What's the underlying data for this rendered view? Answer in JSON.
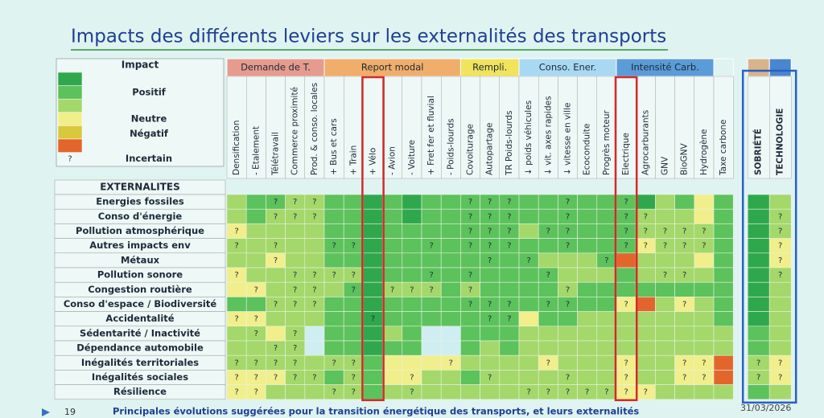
{
  "title": "Impacts des différents leviers sur les externalités des transports",
  "legend": {
    "title": "Impact",
    "colors": [
      "#2fa84d",
      "#5cc25c",
      "#a4d86a",
      "#f1ef8c",
      "#d7c93c",
      "#e2662c"
    ],
    "labels": [
      "Positif",
      "Neutre",
      "Négatif"
    ],
    "uncertain": {
      "symbol": "?",
      "label": "Incertain"
    }
  },
  "table": {
    "row_header": "EXTERNALITES",
    "groups": [
      {
        "label": "Demande de T.",
        "color": "#e79b8e",
        "levers": [
          "Densification",
          "- Etalement",
          "Télétravail",
          "Commerce proximité",
          "Prod. & conso. locales"
        ]
      },
      {
        "label": "Report modal",
        "color": "#f0ae6a",
        "levers": [
          "+ Bus et cars",
          "+ Train",
          "+ Vélo",
          "- Avion",
          "- Voiture",
          "+ Fret fer et fluvial",
          "- Poids-lourds"
        ]
      },
      {
        "label": "Rempli.",
        "color": "#f1e35c",
        "levers": [
          "Covoiturage",
          "Autopartage",
          "TR Poids-lourds"
        ]
      },
      {
        "label": "Conso. Ener.",
        "color": "#a9d9f2",
        "levers": [
          "↓ poids véhicules",
          "↓ vit. axes rapides",
          "↓ vitesse en ville",
          "Ecoconduite",
          "Progrès moteur"
        ]
      },
      {
        "label": "Intensité Carb.",
        "color": "#5b9bd8",
        "levers": [
          "Electrique",
          "Agrocarburants",
          "GNV",
          "BioGNV",
          "Hydrogène"
        ]
      },
      {
        "label": null,
        "color": "#dff3f1",
        "levers": [
          "Taxe carbone"
        ]
      },
      {
        "label": null,
        "color": "#d8b48a",
        "levers": [
          "SOBRIÉTÉ"
        ]
      },
      {
        "label": null,
        "color": "#4a86d0",
        "levers": [
          "TECHNOLOGIE"
        ]
      }
    ],
    "rows": [
      {
        "label": "Energies fossiles",
        "levels": [
          2,
          1,
          1,
          2,
          2,
          1,
          1,
          0,
          1,
          0,
          1,
          1,
          1,
          1,
          1,
          1,
          1,
          1,
          1,
          1,
          1,
          0,
          2,
          1,
          3,
          1,
          0,
          2
        ],
        "marks": [
          null,
          null,
          "?",
          "?",
          "?",
          null,
          null,
          null,
          null,
          null,
          null,
          null,
          "?",
          "?",
          "?",
          null,
          null,
          "?",
          null,
          null,
          "?",
          null,
          null,
          null,
          null,
          null,
          null,
          null
        ]
      },
      {
        "label": "Conso d'énergie",
        "levels": [
          2,
          1,
          2,
          2,
          2,
          1,
          1,
          0,
          1,
          0,
          1,
          1,
          1,
          1,
          1,
          1,
          1,
          1,
          1,
          1,
          1,
          2,
          2,
          2,
          3,
          1,
          0,
          2
        ],
        "marks": [
          null,
          null,
          "?",
          "?",
          "?",
          null,
          null,
          null,
          null,
          null,
          null,
          null,
          "?",
          "?",
          "?",
          null,
          null,
          "?",
          null,
          null,
          "?",
          "?",
          null,
          null,
          null,
          null,
          null,
          "?"
        ]
      },
      {
        "label": "Pollution atmosphérique",
        "levels": [
          3,
          2,
          2,
          2,
          2,
          1,
          1,
          0,
          1,
          1,
          1,
          1,
          1,
          1,
          1,
          2,
          1,
          1,
          1,
          1,
          1,
          2,
          2,
          2,
          2,
          1,
          0,
          2
        ],
        "marks": [
          "?",
          null,
          null,
          null,
          null,
          null,
          null,
          null,
          null,
          null,
          null,
          null,
          "?",
          "?",
          "?",
          null,
          "?",
          "?",
          null,
          null,
          "?",
          "?",
          "?",
          "?",
          "?",
          null,
          null,
          "?"
        ]
      },
      {
        "label": "Autres impacts env",
        "levels": [
          2,
          2,
          2,
          2,
          2,
          1,
          1,
          0,
          1,
          1,
          1,
          1,
          1,
          1,
          1,
          1,
          1,
          1,
          1,
          1,
          1,
          3,
          2,
          2,
          2,
          1,
          0,
          3
        ],
        "marks": [
          "?",
          null,
          "?",
          null,
          null,
          "?",
          "?",
          null,
          null,
          null,
          "?",
          null,
          "?",
          "?",
          "?",
          null,
          null,
          "?",
          null,
          null,
          "?",
          "?",
          "?",
          "?",
          "?",
          null,
          null,
          "?"
        ]
      },
      {
        "label": "Métaux",
        "levels": [
          2,
          2,
          3,
          2,
          2,
          1,
          1,
          0,
          1,
          1,
          1,
          1,
          1,
          1,
          1,
          1,
          2,
          2,
          2,
          1,
          5,
          2,
          2,
          2,
          3,
          1,
          0,
          3
        ],
        "marks": [
          null,
          null,
          "?",
          null,
          null,
          null,
          null,
          null,
          null,
          null,
          null,
          null,
          null,
          "?",
          null,
          "?",
          null,
          null,
          null,
          "?",
          null,
          null,
          null,
          null,
          null,
          null,
          null,
          "?"
        ]
      },
      {
        "label": "Pollution sonore",
        "levels": [
          3,
          2,
          2,
          2,
          2,
          2,
          2,
          0,
          1,
          1,
          1,
          1,
          1,
          1,
          1,
          1,
          1,
          2,
          2,
          2,
          1,
          2,
          2,
          2,
          2,
          1,
          0,
          2
        ],
        "marks": [
          "?",
          null,
          null,
          "?",
          "?",
          "?",
          "?",
          null,
          null,
          null,
          "?",
          null,
          "?",
          null,
          null,
          null,
          "?",
          null,
          null,
          null,
          null,
          null,
          "?",
          "?",
          null,
          null,
          null,
          "?"
        ]
      },
      {
        "label": "Congestion routière",
        "levels": [
          3,
          3,
          2,
          2,
          2,
          2,
          1,
          0,
          2,
          2,
          2,
          1,
          2,
          1,
          1,
          1,
          1,
          2,
          1,
          1,
          1,
          1,
          1,
          1,
          1,
          1,
          0,
          2
        ],
        "marks": [
          null,
          "?",
          null,
          "?",
          "?",
          null,
          "?",
          null,
          "?",
          "?",
          "?",
          null,
          "?",
          null,
          null,
          null,
          null,
          "?",
          null,
          null,
          null,
          null,
          null,
          null,
          null,
          null,
          null,
          null
        ]
      },
      {
        "label": "Conso d'espace / Biodiversité",
        "levels": [
          1,
          1,
          2,
          2,
          2,
          1,
          1,
          0,
          1,
          1,
          1,
          1,
          1,
          1,
          1,
          1,
          1,
          1,
          1,
          1,
          3,
          5,
          2,
          3,
          2,
          1,
          0,
          2
        ],
        "marks": [
          null,
          null,
          "?",
          "?",
          "?",
          null,
          null,
          null,
          null,
          null,
          null,
          null,
          "?",
          "?",
          "?",
          null,
          "?",
          "?",
          null,
          null,
          "?",
          null,
          null,
          "?",
          null,
          null,
          null,
          null
        ]
      },
      {
        "label": "Accidentalité",
        "levels": [
          3,
          3,
          2,
          2,
          2,
          1,
          1,
          0,
          1,
          1,
          1,
          1,
          1,
          1,
          1,
          3,
          1,
          1,
          2,
          2,
          2,
          2,
          2,
          2,
          2,
          1,
          0,
          2
        ],
        "marks": [
          "?",
          "?",
          null,
          null,
          null,
          null,
          null,
          "?",
          null,
          null,
          null,
          null,
          null,
          "?",
          "?",
          null,
          null,
          null,
          null,
          null,
          null,
          null,
          null,
          null,
          null,
          null,
          null,
          null
        ]
      },
      {
        "label": "Sédentarité / Inactivité",
        "levels": [
          2,
          2,
          3,
          2,
          null,
          1,
          1,
          0,
          2,
          1,
          null,
          null,
          1,
          1,
          1,
          2,
          2,
          2,
          2,
          2,
          2,
          2,
          2,
          2,
          2,
          2,
          1,
          2
        ],
        "marks": [
          null,
          "?",
          null,
          "?",
          null,
          null,
          null,
          null,
          null,
          null,
          null,
          null,
          null,
          null,
          null,
          null,
          null,
          null,
          null,
          null,
          null,
          null,
          null,
          null,
          null,
          null,
          null,
          null
        ]
      },
      {
        "label": "Dépendance automobile",
        "levels": [
          2,
          2,
          2,
          2,
          null,
          1,
          1,
          0,
          1,
          1,
          null,
          null,
          1,
          2,
          1,
          2,
          2,
          2,
          2,
          2,
          2,
          2,
          2,
          2,
          2,
          2,
          1,
          2
        ],
        "marks": [
          null,
          null,
          "?",
          "?",
          null,
          null,
          null,
          null,
          null,
          null,
          null,
          null,
          null,
          null,
          null,
          null,
          null,
          null,
          null,
          null,
          null,
          null,
          null,
          null,
          null,
          null,
          null,
          null
        ]
      },
      {
        "label": "Inégalités territoriales",
        "levels": [
          2,
          2,
          2,
          2,
          2,
          2,
          2,
          1,
          3,
          3,
          3,
          3,
          2,
          2,
          2,
          2,
          3,
          2,
          2,
          2,
          3,
          2,
          2,
          3,
          3,
          5,
          2,
          3
        ],
        "marks": [
          "?",
          "?",
          "?",
          "?",
          null,
          "?",
          "?",
          null,
          null,
          null,
          null,
          "?",
          null,
          null,
          null,
          null,
          "?",
          null,
          null,
          null,
          "?",
          null,
          null,
          "?",
          "?",
          null,
          "?",
          "?"
        ]
      },
      {
        "label": "Inégalités sociales",
        "levels": [
          3,
          3,
          3,
          2,
          2,
          1,
          2,
          1,
          3,
          3,
          2,
          2,
          1,
          2,
          2,
          2,
          2,
          2,
          2,
          2,
          3,
          2,
          2,
          3,
          3,
          5,
          2,
          3
        ],
        "marks": [
          "?",
          "?",
          "?",
          "?",
          "?",
          null,
          "?",
          null,
          null,
          "?",
          null,
          null,
          null,
          "?",
          null,
          null,
          null,
          "?",
          null,
          null,
          "?",
          null,
          null,
          "?",
          "?",
          null,
          "?",
          "?"
        ]
      },
      {
        "label": "Résilience",
        "levels": [
          3,
          3,
          2,
          2,
          2,
          2,
          2,
          1,
          2,
          2,
          2,
          2,
          2,
          2,
          2,
          2,
          2,
          2,
          2,
          2,
          3,
          3,
          2,
          2,
          2,
          2,
          1,
          2
        ],
        "marks": [
          "?",
          "?",
          null,
          null,
          null,
          "?",
          "?",
          null,
          null,
          "?",
          null,
          null,
          null,
          null,
          null,
          "?",
          "?",
          "?",
          "?",
          "?",
          "?",
          "?",
          null,
          null,
          null,
          null,
          null,
          null
        ]
      }
    ]
  },
  "footer": {
    "page": "19",
    "caption": "Principales évolutions suggérées pour la transition énergétique des transports, et leurs externalités",
    "date": "31/03/2026"
  }
}
